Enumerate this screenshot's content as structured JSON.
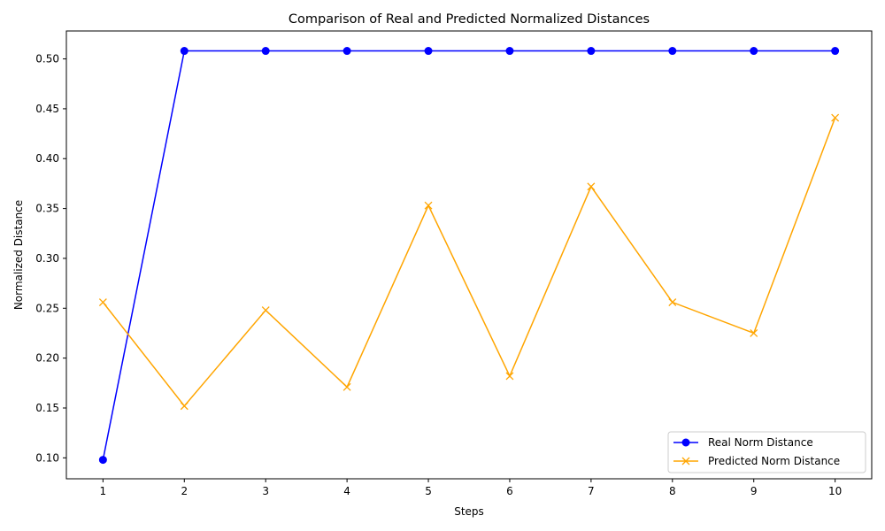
{
  "chart_data": {
    "type": "line",
    "title": "Comparison of Real and Predicted Normalized Distances",
    "xlabel": "Steps",
    "ylabel": "Normalized Distance",
    "x": [
      1,
      2,
      3,
      4,
      5,
      6,
      7,
      8,
      9,
      10
    ],
    "x_ticks": [
      "1",
      "2",
      "3",
      "4",
      "5",
      "6",
      "7",
      "8",
      "9",
      "10"
    ],
    "y_ticks": [
      "0.10",
      "0.15",
      "0.20",
      "0.25",
      "0.30",
      "0.35",
      "0.40",
      "0.45",
      "0.50"
    ],
    "xlim": [
      0.55,
      10.45
    ],
    "ylim": [
      0.079,
      0.528
    ],
    "grid": false,
    "legend_position": "lower right",
    "series": [
      {
        "name": "Real Norm Distance",
        "color": "#0000ff",
        "marker": "circle",
        "values": [
          0.098,
          0.508,
          0.508,
          0.508,
          0.508,
          0.508,
          0.508,
          0.508,
          0.508,
          0.508
        ]
      },
      {
        "name": "Predicted Norm Distance",
        "color": "#ffa500",
        "marker": "x",
        "values": [
          0.256,
          0.152,
          0.248,
          0.171,
          0.353,
          0.182,
          0.372,
          0.256,
          0.225,
          0.441
        ]
      }
    ]
  }
}
